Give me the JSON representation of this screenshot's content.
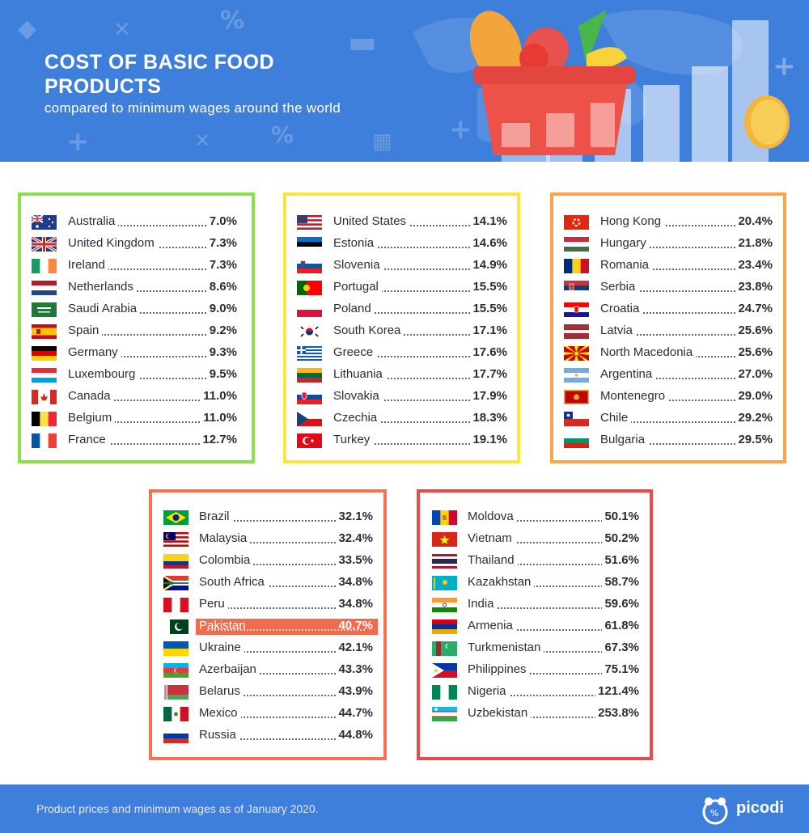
{
  "header": {
    "title": "COST OF BASIC FOOD PRODUCTS",
    "subtitle": "compared to minimum wages around the world"
  },
  "footer": {
    "note": "Product prices and minimum wages as of January 2020.",
    "brand": "picodi"
  },
  "colors": {
    "header_bg": "#3f7fdc",
    "green": "#8be04a",
    "yellow": "#ffe53b",
    "orange": "#ffa24a",
    "salmon": "#f9714f",
    "red": "#ef4848",
    "highlight": "#f36b4f"
  },
  "groups": [
    {
      "color": "#8be04a",
      "rows": [
        {
          "country": "Australia",
          "value": "7.0%",
          "flag": "australia-flag"
        },
        {
          "country": "United Kingdom",
          "value": "7.3%",
          "flag": "united-kingdom-flag"
        },
        {
          "country": "Ireland",
          "value": "7.3%",
          "flag": "ireland-flag"
        },
        {
          "country": "Netherlands",
          "value": "8.6%",
          "flag": "netherlands-flag"
        },
        {
          "country": "Saudi Arabia",
          "value": "9.0%",
          "flag": "saudi-arabia-flag"
        },
        {
          "country": "Spain",
          "value": "9.2%",
          "flag": "spain-flag"
        },
        {
          "country": "Germany",
          "value": "9.3%",
          "flag": "germany-flag"
        },
        {
          "country": "Luxembourg",
          "value": "9.5%",
          "flag": "luxembourg-flag"
        },
        {
          "country": "Canada",
          "value": "11.0%",
          "flag": "canada-flag"
        },
        {
          "country": "Belgium",
          "value": "11.0%",
          "flag": "belgium-flag"
        },
        {
          "country": "France",
          "value": "12.7%",
          "flag": "france-flag"
        }
      ]
    },
    {
      "color": "#ffe53b",
      "rows": [
        {
          "country": "United States",
          "value": "14.1%",
          "flag": "united-states-flag"
        },
        {
          "country": "Estonia",
          "value": "14.6%",
          "flag": "estonia-flag"
        },
        {
          "country": "Slovenia",
          "value": "14.9%",
          "flag": "slovenia-flag"
        },
        {
          "country": "Portugal",
          "value": "15.5%",
          "flag": "portugal-flag"
        },
        {
          "country": "Poland",
          "value": "15.5%",
          "flag": "poland-flag"
        },
        {
          "country": "South Korea",
          "value": "17.1%",
          "flag": "south-korea-flag"
        },
        {
          "country": "Greece",
          "value": "17.6%",
          "flag": "greece-flag"
        },
        {
          "country": "Lithuania",
          "value": "17.7%",
          "flag": "lithuania-flag"
        },
        {
          "country": "Slovakia",
          "value": "17.9%",
          "flag": "slovakia-flag"
        },
        {
          "country": "Czechia",
          "value": "18.3%",
          "flag": "czechia-flag"
        },
        {
          "country": "Turkey",
          "value": "19.1%",
          "flag": "turkey-flag"
        }
      ]
    },
    {
      "color": "#ffa24a",
      "rows": [
        {
          "country": "Hong Kong",
          "value": "20.4%",
          "flag": "hong-kong-flag"
        },
        {
          "country": "Hungary",
          "value": "21.8%",
          "flag": "hungary-flag"
        },
        {
          "country": "Romania",
          "value": "23.4%",
          "flag": "romania-flag"
        },
        {
          "country": "Serbia",
          "value": "23.8%",
          "flag": "serbia-flag"
        },
        {
          "country": "Croatia",
          "value": "24.7%",
          "flag": "croatia-flag"
        },
        {
          "country": "Latvia",
          "value": "25.6%",
          "flag": "latvia-flag"
        },
        {
          "country": "North Macedonia",
          "value": "25.6%",
          "flag": "north-macedonia-flag"
        },
        {
          "country": "Argentina",
          "value": "27.0%",
          "flag": "argentina-flag"
        },
        {
          "country": "Montenegro",
          "value": "29.0%",
          "flag": "montenegro-flag"
        },
        {
          "country": "Chile",
          "value": "29.2%",
          "flag": "chile-flag"
        },
        {
          "country": "Bulgaria",
          "value": "29.5%",
          "flag": "bulgaria-flag"
        }
      ]
    },
    {
      "color": "#f9714f",
      "rows": [
        {
          "country": "Brazil",
          "value": "32.1%",
          "flag": "brazil-flag"
        },
        {
          "country": "Malaysia",
          "value": "32.4%",
          "flag": "malaysia-flag"
        },
        {
          "country": "Colombia",
          "value": "33.5%",
          "flag": "colombia-flag"
        },
        {
          "country": "South Africa",
          "value": "34.8%",
          "flag": "south-africa-flag"
        },
        {
          "country": "Peru",
          "value": "34.8%",
          "flag": "peru-flag"
        },
        {
          "country": "Pakistan",
          "value": "40.7%",
          "flag": "pakistan-flag",
          "highlight": true
        },
        {
          "country": "Ukraine",
          "value": "42.1%",
          "flag": "ukraine-flag"
        },
        {
          "country": "Azerbaijan",
          "value": "43.3%",
          "flag": "azerbaijan-flag"
        },
        {
          "country": "Belarus",
          "value": "43.9%",
          "flag": "belarus-flag"
        },
        {
          "country": "Mexico",
          "value": "44.7%",
          "flag": "mexico-flag"
        },
        {
          "country": "Russia",
          "value": "44.8%",
          "flag": "russia-flag"
        }
      ]
    },
    {
      "color": "#ef4848",
      "rows": [
        {
          "country": "Moldova",
          "value": "50.1%",
          "flag": "moldova-flag"
        },
        {
          "country": "Vietnam",
          "value": "50.2%",
          "flag": "vietnam-flag"
        },
        {
          "country": "Thailand",
          "value": "51.6%",
          "flag": "thailand-flag"
        },
        {
          "country": "Kazakhstan",
          "value": "58.7%",
          "flag": "kazakhstan-flag"
        },
        {
          "country": "India",
          "value": "59.6%",
          "flag": "india-flag"
        },
        {
          "country": "Armenia",
          "value": "61.8%",
          "flag": "armenia-flag"
        },
        {
          "country": "Turkmenistan",
          "value": "67.3%",
          "flag": "turkmenistan-flag"
        },
        {
          "country": "Philippines",
          "value": "75.1%",
          "flag": "philippines-flag"
        },
        {
          "country": "Nigeria",
          "value": "121.4%",
          "flag": "nigeria-flag"
        },
        {
          "country": "Uzbekistan",
          "value": "253.8%",
          "flag": "uzbekistan-flag"
        }
      ]
    }
  ]
}
